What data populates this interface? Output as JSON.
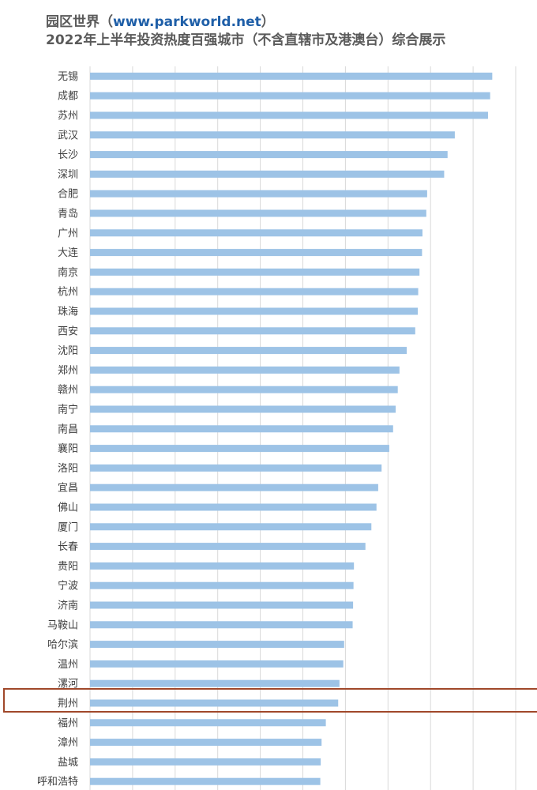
{
  "header": {
    "brand": "园区世界",
    "paren_open": "（",
    "url": "www.parkworld.net",
    "paren_close": "）",
    "subtitle": "2022年上半年投资热度百强城市（不含直辖市及港澳台）综合展示"
  },
  "highlight": {
    "category": "荆州",
    "color": "#a0482a"
  },
  "colors": {
    "bar": "#9dc3e6",
    "grid": "#d9d9d9",
    "text": "#404040"
  },
  "chart_data": {
    "type": "bar",
    "orientation": "horizontal",
    "title": "2022年上半年投资热度百强城市（不含直辖市及港澳台）综合展示",
    "xlabel": "",
    "ylabel": "",
    "xlim": [
      0,
      100
    ],
    "grid": true,
    "legend": "none",
    "categories": [
      "无锡",
      "成都",
      "苏州",
      "武汉",
      "长沙",
      "深圳",
      "合肥",
      "青岛",
      "广州",
      "大连",
      "南京",
      "杭州",
      "珠海",
      "西安",
      "沈阳",
      "郑州",
      "赣州",
      "南宁",
      "南昌",
      "襄阳",
      "洛阳",
      "宜昌",
      "佛山",
      "厦门",
      "长春",
      "贵阳",
      "宁波",
      "济南",
      "马鞍山",
      "哈尔滨",
      "温州",
      "漯河",
      "荆州",
      "福州",
      "漳州",
      "盐城",
      "呼和浩特"
    ],
    "values": [
      94.5,
      94.0,
      93.5,
      85.7,
      84.0,
      83.2,
      79.2,
      79.0,
      78.1,
      78.0,
      77.4,
      77.1,
      77.0,
      76.4,
      74.4,
      72.7,
      72.3,
      71.8,
      71.2,
      70.3,
      68.5,
      67.7,
      67.3,
      66.1,
      64.7,
      62.0,
      61.9,
      61.8,
      61.7,
      59.7,
      59.5,
      58.6,
      58.3,
      55.4,
      54.4,
      54.2,
      54.1
    ]
  }
}
